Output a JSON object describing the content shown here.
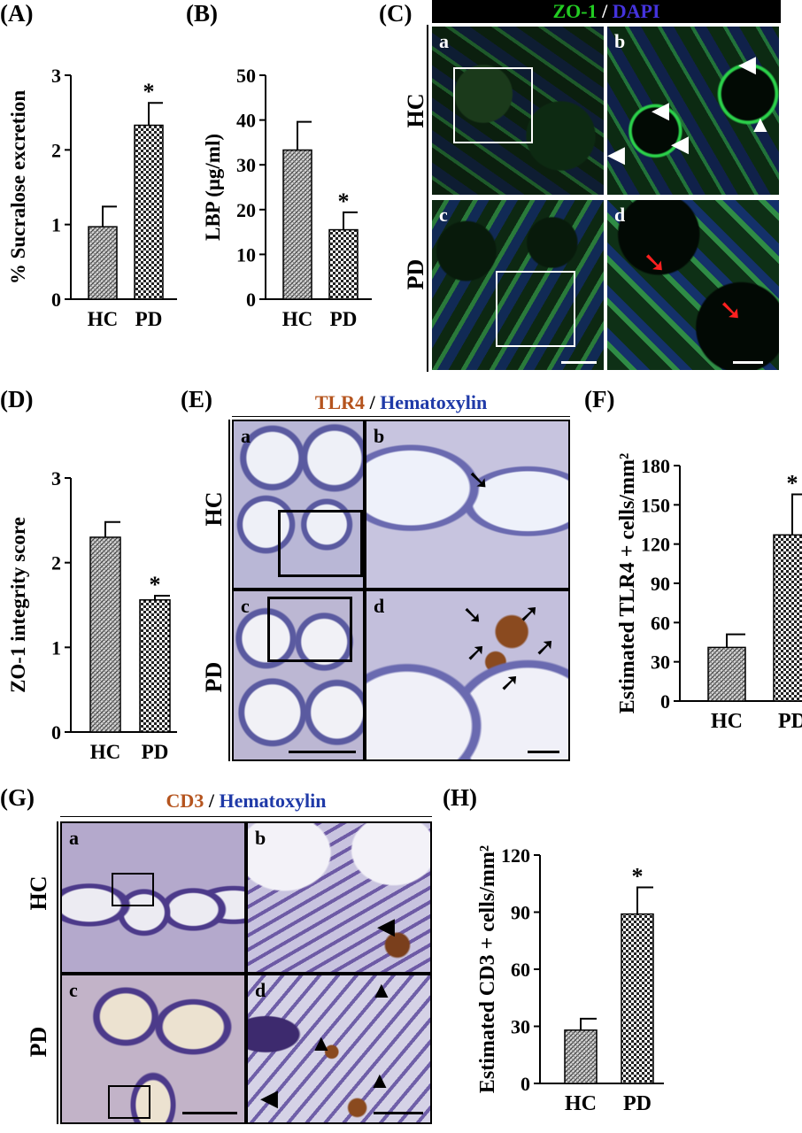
{
  "panels": {
    "A": "(A)",
    "B": "(B)",
    "C": "(C)",
    "D": "(D)",
    "E": "(E)",
    "F": "(F)",
    "G": "(G)",
    "H": "(H)"
  },
  "stains": {
    "C": {
      "marker": "ZO-1",
      "sep": " / ",
      "counter": "DAPI",
      "marker_color": "#22cc22",
      "counter_color": "#4433dd"
    },
    "E": {
      "marker": "TLR4",
      "sep": " / ",
      "counter": "Hematoxylin",
      "marker_color": "#b5541e",
      "counter_color": "#1f3aa8"
    },
    "G": {
      "marker": "CD3",
      "sep": " / ",
      "counter": "Hematoxylin",
      "marker_color": "#b5541e",
      "counter_color": "#1f3aa8"
    }
  },
  "rows": {
    "hc": "HC",
    "pd": "PD"
  },
  "subpanels": {
    "a": "a",
    "b": "b",
    "c": "c",
    "d": "d"
  },
  "significance": "*",
  "chart_data": [
    {
      "id": "A",
      "type": "bar",
      "categories": [
        "HC",
        "PD"
      ],
      "values": [
        0.97,
        2.33
      ],
      "errors": [
        0.27,
        0.3
      ],
      "ylabel": "% Sucralose excretion",
      "ylim": [
        0,
        3
      ],
      "yticks": [
        "0",
        "1",
        "2",
        "3"
      ],
      "significant": [
        false,
        true
      ]
    },
    {
      "id": "B",
      "type": "bar",
      "categories": [
        "HC",
        "PD"
      ],
      "values": [
        33.3,
        15.5
      ],
      "errors": [
        6.3,
        3.9
      ],
      "ylabel": "LBP (μg/ml)",
      "ylim": [
        0,
        50
      ],
      "yticks": [
        "0",
        "10",
        "20",
        "30",
        "40",
        "50"
      ],
      "significant": [
        false,
        true
      ]
    },
    {
      "id": "D",
      "type": "bar",
      "categories": [
        "HC",
        "PD"
      ],
      "values": [
        2.3,
        1.56
      ],
      "errors": [
        0.18,
        0.05
      ],
      "ylabel": "ZO-1 integrity score",
      "ylim": [
        0,
        3
      ],
      "yticks": [
        "0",
        "1",
        "2",
        "3"
      ],
      "significant": [
        false,
        true
      ]
    },
    {
      "id": "F",
      "type": "bar",
      "categories": [
        "HC",
        "PD"
      ],
      "values": [
        41,
        127
      ],
      "errors": [
        10,
        31
      ],
      "ylabel": "Estimated TLR4 + cells/mm²",
      "ylim": [
        0,
        180
      ],
      "yticks": [
        "0",
        "30",
        "60",
        "90",
        "120",
        "150",
        "180"
      ],
      "significant": [
        false,
        true
      ]
    },
    {
      "id": "H",
      "type": "bar",
      "categories": [
        "HC",
        "PD"
      ],
      "values": [
        28,
        89
      ],
      "errors": [
        6,
        14
      ],
      "ylabel": "Estimated CD3 + cells/mm²",
      "ylim": [
        0,
        120
      ],
      "yticks": [
        "0",
        "30",
        "60",
        "90",
        "120"
      ],
      "significant": [
        false,
        true
      ]
    }
  ]
}
